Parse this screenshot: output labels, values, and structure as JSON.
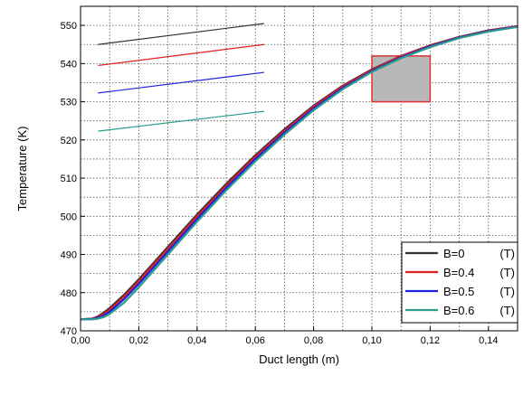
{
  "chart_data": {
    "type": "line",
    "title": "",
    "xlabel": "Duct length (m)",
    "ylabel": "Temperature (K)",
    "xlim": [
      0.0,
      0.15
    ],
    "ylim": [
      470,
      555
    ],
    "grid": true,
    "legend_position": "bottom-right",
    "x_ticks": [
      "0,00",
      "0,02",
      "0,04",
      "0,06",
      "0,08",
      "0,10",
      "0,12",
      "0,14"
    ],
    "x_tick_values": [
      0.0,
      0.02,
      0.04,
      0.06,
      0.08,
      0.1,
      0.12,
      0.14
    ],
    "y_ticks": [
      "470",
      "480",
      "490",
      "500",
      "510",
      "520",
      "530",
      "540",
      "550"
    ],
    "y_tick_values": [
      470,
      480,
      490,
      500,
      510,
      520,
      530,
      540,
      550
    ],
    "x": [
      0.0,
      0.004,
      0.006,
      0.008,
      0.01,
      0.015,
      0.02,
      0.03,
      0.04,
      0.05,
      0.06,
      0.07,
      0.08,
      0.09,
      0.1,
      0.11,
      0.12,
      0.13,
      0.14,
      0.15
    ],
    "series": [
      {
        "name": "B=0",
        "unit": "(T)",
        "color": "#333333",
        "values": [
          473.0,
          473.2,
          473.8,
          474.8,
          476.0,
          479.5,
          483.5,
          492.0,
          500.5,
          508.5,
          516.0,
          522.8,
          529.0,
          534.2,
          538.5,
          542.0,
          544.8,
          547.0,
          548.7,
          549.8
        ]
      },
      {
        "name": "B=0.4",
        "unit": "(T)",
        "color": "#e02020",
        "values": [
          473.0,
          473.2,
          473.6,
          474.4,
          475.5,
          479.0,
          483.0,
          491.5,
          500.0,
          508.0,
          515.6,
          522.4,
          528.7,
          534.0,
          538.3,
          541.9,
          544.7,
          546.9,
          548.6,
          549.8
        ]
      },
      {
        "name": "B=0.5",
        "unit": "(T)",
        "color": "#2020e0",
        "values": [
          473.0,
          473.1,
          473.4,
          474.0,
          475.0,
          478.3,
          482.3,
          490.8,
          499.3,
          507.4,
          515.0,
          521.9,
          528.2,
          533.6,
          538.0,
          541.6,
          544.5,
          546.8,
          548.5,
          549.7
        ]
      },
      {
        "name": "B=0.6",
        "unit": "(T)",
        "color": "#2a9d8f",
        "values": [
          473.0,
          473.0,
          473.2,
          473.6,
          474.4,
          477.4,
          481.4,
          490.0,
          498.6,
          506.8,
          514.4,
          521.4,
          527.8,
          533.3,
          537.8,
          541.4,
          544.3,
          546.7,
          548.4,
          549.6
        ]
      }
    ],
    "zoom_box": {
      "x": [
        0.1,
        0.12
      ],
      "y": [
        530,
        542
      ],
      "fill": "#b8b8b8",
      "stroke": "#e03030"
    },
    "inset": {
      "x": [
        0.006,
        0.063
      ],
      "lines": [
        {
          "series": "B=0",
          "y": [
            545.0,
            550.5
          ]
        },
        {
          "series": "B=0.4",
          "y": [
            539.5,
            545.0
          ]
        },
        {
          "series": "B=0.5",
          "y": [
            532.3,
            537.7
          ]
        },
        {
          "series": "B=0.6",
          "y": [
            522.3,
            527.5
          ]
        }
      ]
    }
  }
}
